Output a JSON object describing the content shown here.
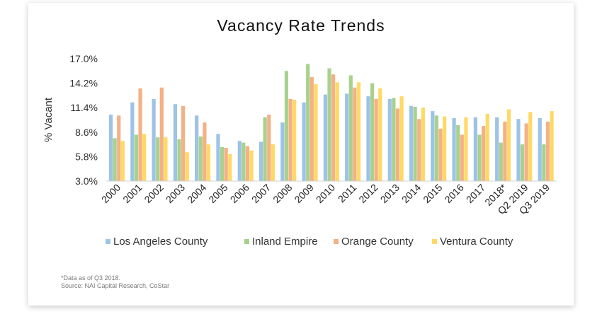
{
  "chart_data": {
    "type": "bar",
    "title": "Vacancy Rate Trends",
    "xlabel": "",
    "ylabel": "% Vacant",
    "ylim": [
      3.0,
      17.0
    ],
    "yticks": [
      "17.0%",
      "14.2%",
      "11.4%",
      "8.6%",
      "5.8%",
      "3.0%"
    ],
    "ytick_values": [
      17.0,
      14.2,
      11.4,
      8.6,
      5.8,
      3.0
    ],
    "categories": [
      "2000",
      "2001",
      "2002",
      "2003",
      "2004",
      "2005",
      "2006",
      "2007",
      "2008",
      "2009",
      "2010",
      "2011",
      "2012",
      "2013",
      "2014",
      "2015",
      "2016",
      "2017",
      "2018*",
      "Q2 2019",
      "Q3 2019"
    ],
    "legend_position": "bottom",
    "grid": false,
    "series": [
      {
        "name": "Los Angeles County",
        "color": "#9dc3e6",
        "values": [
          10.6,
          12.0,
          12.4,
          11.8,
          10.5,
          8.4,
          7.6,
          7.5,
          9.7,
          12.0,
          12.9,
          13.0,
          12.7,
          12.4,
          11.6,
          11.0,
          10.2,
          10.3,
          10.3,
          10.1,
          10.2
        ]
      },
      {
        "name": "Inland Empire",
        "color": "#a9d18e",
        "values": [
          7.9,
          8.3,
          8.0,
          7.8,
          8.1,
          6.9,
          7.4,
          10.3,
          15.6,
          16.4,
          15.9,
          15.1,
          14.2,
          12.5,
          11.5,
          10.5,
          9.4,
          8.3,
          7.4,
          7.2,
          7.2
        ]
      },
      {
        "name": "Orange County",
        "color": "#f4b183",
        "values": [
          10.5,
          13.6,
          13.7,
          11.6,
          9.7,
          6.8,
          7.0,
          10.6,
          12.4,
          14.9,
          15.2,
          13.7,
          12.4,
          11.3,
          10.1,
          9.0,
          8.3,
          9.3,
          9.8,
          9.6,
          9.8
        ]
      },
      {
        "name": "Ventura County",
        "color": "#ffd966",
        "values": [
          7.6,
          8.4,
          8.0,
          6.3,
          7.2,
          6.1,
          6.5,
          7.2,
          12.3,
          14.1,
          14.3,
          14.3,
          13.6,
          12.7,
          11.4,
          10.4,
          10.3,
          10.7,
          11.2,
          10.9,
          11.0
        ]
      }
    ]
  },
  "footnote": {
    "line1": "*Data as of Q3 2018.",
    "line2": "Source: NAI Capital Research, CoStar"
  }
}
